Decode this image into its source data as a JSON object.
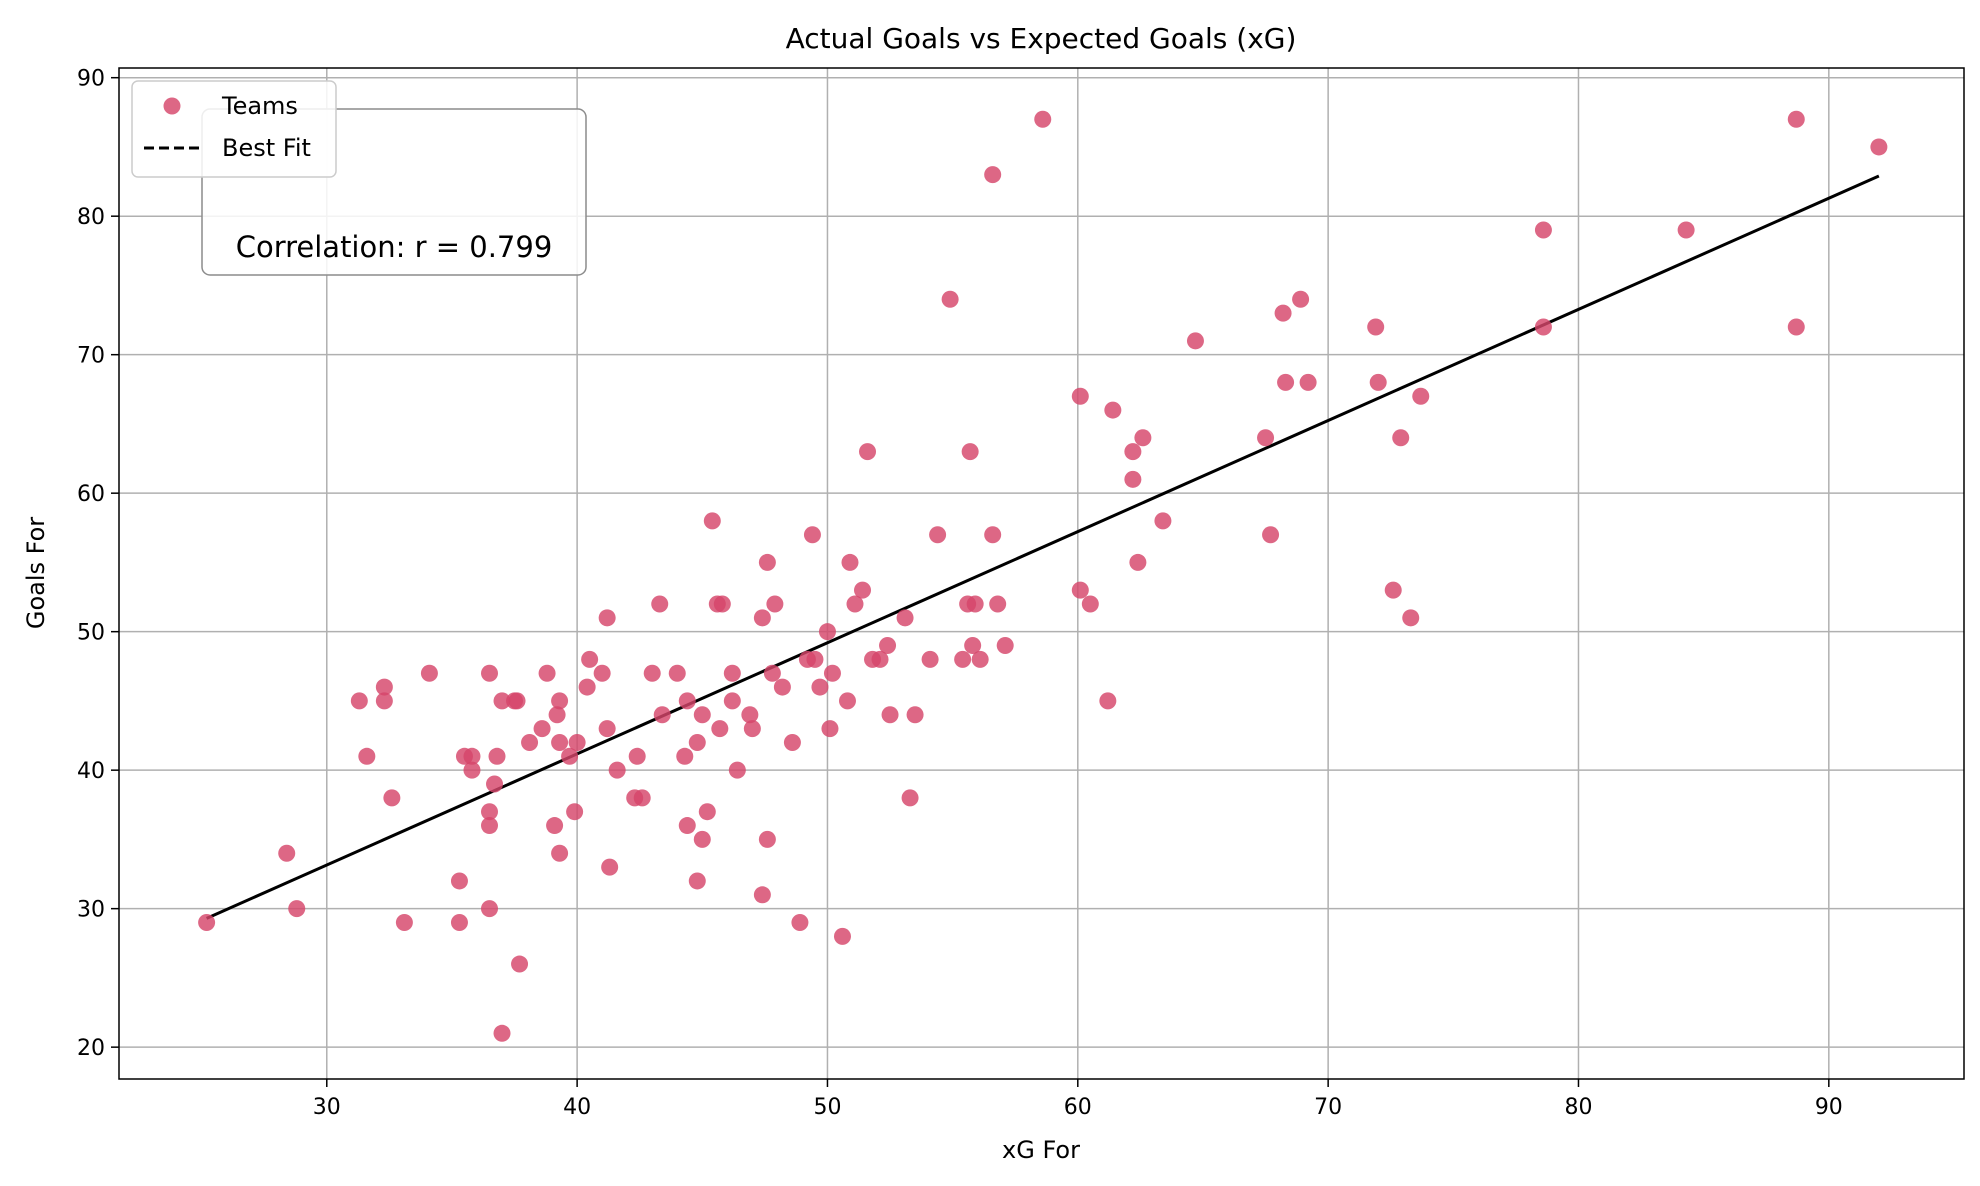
{
  "chart_data": {
    "type": "scatter",
    "title": "Actual Goals vs Expected Goals (xG)",
    "xlabel": "xG For",
    "ylabel": "Goals For",
    "xlim": [
      21.7,
      95.4
    ],
    "ylim": [
      17.7,
      90.7
    ],
    "xticks": [
      30,
      40,
      50,
      60,
      70,
      80,
      90
    ],
    "yticks": [
      20,
      30,
      40,
      50,
      60,
      70,
      80,
      90
    ],
    "grid": true,
    "legend_position": "top-left",
    "annotation": "Correlation: r = 0.799",
    "point_color": "#d6456a",
    "line_color": "#000000",
    "series": [
      {
        "name": "Teams",
        "type": "scatter",
        "points": [
          [
            25.2,
            29
          ],
          [
            28.4,
            34
          ],
          [
            28.8,
            30
          ],
          [
            31.3,
            45
          ],
          [
            31.6,
            41
          ],
          [
            32.3,
            46
          ],
          [
            32.3,
            45
          ],
          [
            32.6,
            38
          ],
          [
            33.1,
            29
          ],
          [
            34.1,
            47
          ],
          [
            35.3,
            32
          ],
          [
            35.3,
            29
          ],
          [
            35.5,
            41
          ],
          [
            35.8,
            41
          ],
          [
            35.8,
            40
          ],
          [
            36.5,
            47
          ],
          [
            36.5,
            37
          ],
          [
            36.5,
            36
          ],
          [
            36.5,
            30
          ],
          [
            36.7,
            39
          ],
          [
            36.8,
            41
          ],
          [
            37.0,
            45
          ],
          [
            37.0,
            21
          ],
          [
            37.5,
            45
          ],
          [
            37.6,
            45
          ],
          [
            37.7,
            26
          ],
          [
            38.1,
            42
          ],
          [
            38.6,
            43
          ],
          [
            38.8,
            47
          ],
          [
            39.1,
            36
          ],
          [
            39.2,
            44
          ],
          [
            39.3,
            45
          ],
          [
            39.3,
            42
          ],
          [
            39.3,
            34
          ],
          [
            39.7,
            41
          ],
          [
            39.9,
            37
          ],
          [
            40.0,
            42
          ],
          [
            40.4,
            46
          ],
          [
            40.5,
            48
          ],
          [
            41.0,
            47
          ],
          [
            41.2,
            51
          ],
          [
            41.2,
            43
          ],
          [
            41.3,
            33
          ],
          [
            41.6,
            40
          ],
          [
            42.3,
            38
          ],
          [
            42.4,
            41
          ],
          [
            42.6,
            38
          ],
          [
            43.0,
            47
          ],
          [
            43.3,
            52
          ],
          [
            43.4,
            44
          ],
          [
            44.0,
            47
          ],
          [
            44.3,
            41
          ],
          [
            44.4,
            45
          ],
          [
            44.4,
            36
          ],
          [
            44.8,
            42
          ],
          [
            44.8,
            32
          ],
          [
            45.0,
            44
          ],
          [
            45.0,
            35
          ],
          [
            45.2,
            37
          ],
          [
            45.4,
            58
          ],
          [
            45.6,
            52
          ],
          [
            45.7,
            43
          ],
          [
            45.8,
            52
          ],
          [
            46.2,
            47
          ],
          [
            46.2,
            45
          ],
          [
            46.4,
            40
          ],
          [
            46.9,
            44
          ],
          [
            47.0,
            43
          ],
          [
            47.4,
            51
          ],
          [
            47.4,
            31
          ],
          [
            47.6,
            55
          ],
          [
            47.6,
            35
          ],
          [
            47.8,
            47
          ],
          [
            47.9,
            52
          ],
          [
            48.2,
            46
          ],
          [
            48.6,
            42
          ],
          [
            48.9,
            29
          ],
          [
            49.2,
            48
          ],
          [
            49.4,
            57
          ],
          [
            49.5,
            48
          ],
          [
            49.7,
            46
          ],
          [
            50.0,
            50
          ],
          [
            50.1,
            43
          ],
          [
            50.2,
            47
          ],
          [
            50.6,
            28
          ],
          [
            50.8,
            45
          ],
          [
            50.9,
            55
          ],
          [
            51.1,
            52
          ],
          [
            51.4,
            53
          ],
          [
            51.6,
            63
          ],
          [
            51.8,
            48
          ],
          [
            52.1,
            48
          ],
          [
            52.4,
            49
          ],
          [
            52.5,
            44
          ],
          [
            53.1,
            51
          ],
          [
            53.3,
            38
          ],
          [
            53.5,
            44
          ],
          [
            54.1,
            48
          ],
          [
            54.4,
            57
          ],
          [
            54.9,
            74
          ],
          [
            55.4,
            48
          ],
          [
            55.6,
            52
          ],
          [
            55.7,
            63
          ],
          [
            55.8,
            49
          ],
          [
            55.9,
            52
          ],
          [
            56.1,
            48
          ],
          [
            56.6,
            83
          ],
          [
            56.6,
            57
          ],
          [
            56.8,
            52
          ],
          [
            57.1,
            49
          ],
          [
            58.6,
            87
          ],
          [
            60.1,
            67
          ],
          [
            60.1,
            53
          ],
          [
            60.5,
            52
          ],
          [
            61.2,
            45
          ],
          [
            61.4,
            66
          ],
          [
            62.2,
            63
          ],
          [
            62.2,
            61
          ],
          [
            62.4,
            55
          ],
          [
            62.6,
            64
          ],
          [
            63.4,
            58
          ],
          [
            64.7,
            71
          ],
          [
            67.5,
            64
          ],
          [
            67.7,
            57
          ],
          [
            68.2,
            73
          ],
          [
            68.3,
            68
          ],
          [
            68.9,
            74
          ],
          [
            69.2,
            68
          ],
          [
            71.9,
            72
          ],
          [
            72.0,
            68
          ],
          [
            72.6,
            53
          ],
          [
            72.9,
            64
          ],
          [
            73.3,
            51
          ],
          [
            73.7,
            67
          ],
          [
            78.6,
            79
          ],
          [
            78.6,
            72
          ],
          [
            84.3,
            79
          ],
          [
            88.7,
            87
          ],
          [
            88.7,
            72
          ],
          [
            92.0,
            85
          ]
        ]
      },
      {
        "name": "Best Fit",
        "type": "line",
        "style": "dashed",
        "points": [
          [
            25.2,
            29.3
          ],
          [
            92.0,
            82.9
          ]
        ]
      }
    ]
  }
}
